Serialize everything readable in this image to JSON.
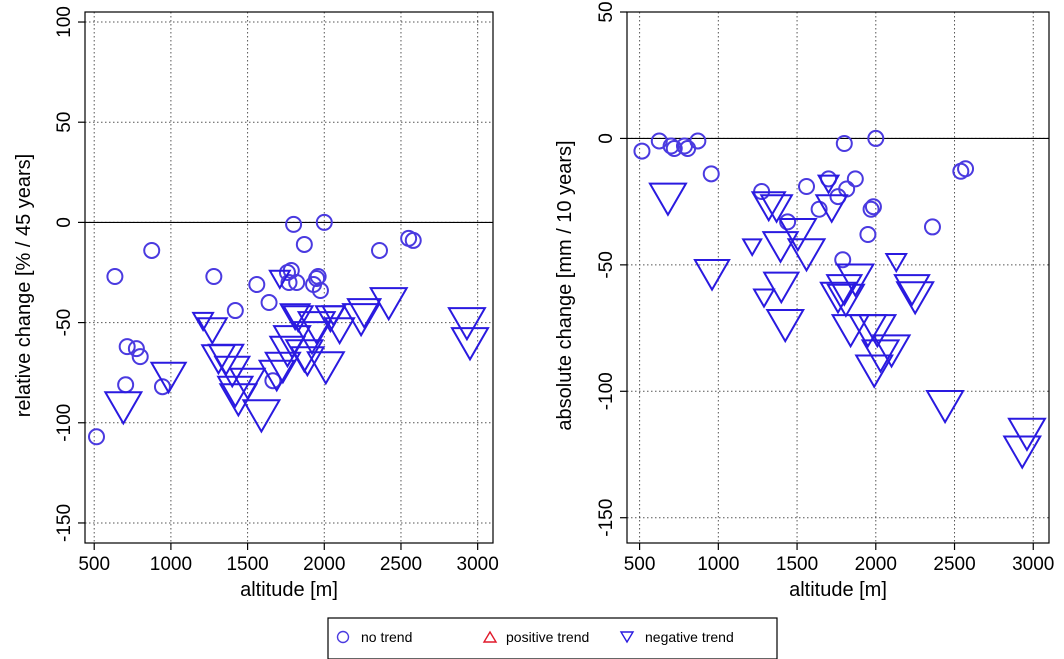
{
  "colors": {
    "no_trend": "#4a3ae0",
    "negative_trend": "#2a1ae0",
    "positive_trend": "#e0182a"
  },
  "legend": {
    "items": [
      {
        "label": "no trend",
        "marker": "circle"
      },
      {
        "label": "positive trend",
        "marker": "triangle-up"
      },
      {
        "label": "negative trend",
        "marker": "triangle-down"
      }
    ]
  },
  "chart_data": [
    {
      "type": "scatter",
      "xlabel": "altitude [m]",
      "ylabel": "relative change [% / 45 years]",
      "xlim": [
        440,
        3100
      ],
      "ylim": [
        -160,
        105
      ],
      "xticks": [
        500,
        1000,
        1500,
        2000,
        2500,
        3000
      ],
      "yticks": [
        -150,
        -100,
        -50,
        0,
        50,
        100
      ],
      "reference_line": 0,
      "grid": true,
      "no_trend": {
        "x": [
          515,
          635,
          705,
          715,
          775,
          800,
          875,
          945,
          1280,
          1420,
          1560,
          1640,
          1665,
          1760,
          1770,
          1785,
          1800,
          1820,
          1870,
          1930,
          1950,
          1960,
          1975,
          2000,
          2360,
          2550,
          2580
        ],
        "y": [
          -107,
          -27,
          -81,
          -62,
          -63,
          -67,
          -14,
          -82,
          -27,
          -44,
          -31,
          -40,
          -79,
          -25,
          -30,
          -24,
          -1,
          -30,
          -11,
          -31,
          -28,
          -27,
          -34,
          0,
          -14,
          -8,
          -9
        ]
      },
      "negative_trend": {
        "x": [
          690,
          985,
          1210,
          1270,
          1310,
          1360,
          1400,
          1420,
          1440,
          1500,
          1590,
          1690,
          1710,
          1730,
          1760,
          1790,
          1810,
          1830,
          1870,
          1890,
          1920,
          1950,
          2010,
          2040,
          2060,
          2100,
          2240,
          2260,
          2420,
          2930,
          2950
        ],
        "y": [
          -90,
          -75,
          -48,
          -52,
          -66,
          -66,
          -72,
          -82,
          -86,
          -78,
          -94,
          -74,
          -27,
          -70,
          -62,
          -57,
          -45,
          -46,
          -64,
          -67,
          -55,
          -50,
          -70,
          -46,
          -45,
          -52,
          -46,
          -43,
          -38,
          -48,
          -58
        ],
        "sizes": [
          1.0,
          0.95,
          0.55,
          0.8,
          0.9,
          0.95,
          0.95,
          0.95,
          1.0,
          0.95,
          1.0,
          0.95,
          0.55,
          0.95,
          0.95,
          1.0,
          0.8,
          0.8,
          1.0,
          0.9,
          1.0,
          1.0,
          1.0,
          0.8,
          0.6,
          0.8,
          1.0,
          0.9,
          1.0,
          1.0,
          1.0
        ]
      }
    },
    {
      "type": "scatter",
      "xlabel": "altitude [m]",
      "ylabel": "absolute change [mm / 10 years]",
      "xlim": [
        420,
        3100
      ],
      "ylim": [
        -160,
        50
      ],
      "xticks": [
        500,
        1000,
        1500,
        2000,
        2500,
        3000
      ],
      "yticks": [
        -150,
        -100,
        -50,
        0,
        50
      ],
      "reference_line": 0,
      "grid": true,
      "no_trend": {
        "x": [
          515,
          625,
          700,
          720,
          785,
          805,
          870,
          955,
          1275,
          1440,
          1560,
          1640,
          1700,
          1760,
          1790,
          1800,
          1815,
          1870,
          1950,
          1970,
          1985,
          2000,
          2360,
          2540,
          2570
        ],
        "y": [
          -5,
          -1,
          -3,
          -4,
          -3,
          -4,
          -1,
          -14,
          -21,
          -33,
          -19,
          -28,
          -16,
          -23,
          -48,
          -2,
          -20,
          -16,
          -38,
          -28,
          -27,
          0,
          -35,
          -13,
          -12
        ]
      },
      "negative_trend": {
        "x": [
          680,
          960,
          1215,
          1290,
          1320,
          1370,
          1395,
          1400,
          1425,
          1505,
          1560,
          1700,
          1720,
          1760,
          1800,
          1810,
          1840,
          1870,
          1950,
          1990,
          2010,
          2030,
          2100,
          2130,
          2230,
          2250,
          2440,
          2930,
          2960
        ],
        "y": [
          -22,
          -52,
          -42,
          -62,
          -25,
          -26,
          -41,
          -57,
          -72,
          -36,
          -44,
          -17,
          -26,
          -61,
          -58,
          -62,
          -74,
          -54,
          -74,
          -90,
          -74,
          -84,
          -82,
          -48,
          -58,
          -61,
          -104,
          -122,
          -115
        ],
        "sizes": [
          1.0,
          0.95,
          0.5,
          0.55,
          0.9,
          0.85,
          0.95,
          0.95,
          1.0,
          1.0,
          1.0,
          0.55,
          0.85,
          0.95,
          0.95,
          1.0,
          1.0,
          1.0,
          1.0,
          1.0,
          1.0,
          1.0,
          1.0,
          0.55,
          0.95,
          1.0,
          1.0,
          1.0,
          1.0
        ]
      }
    }
  ]
}
